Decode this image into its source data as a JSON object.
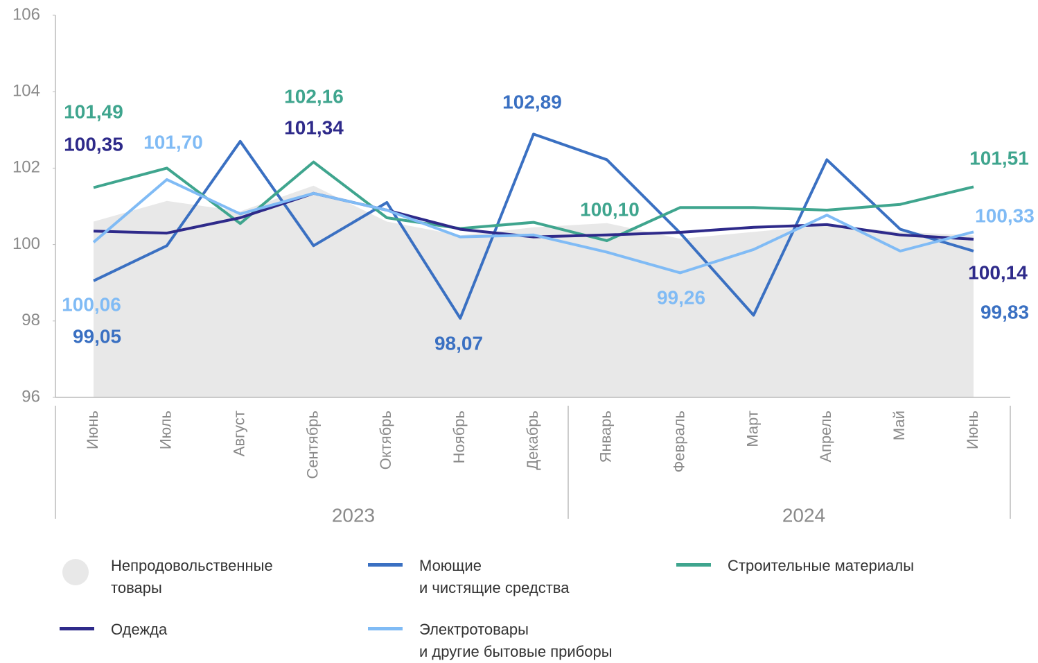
{
  "chart_data": {
    "type": "line",
    "categories": [
      "Июнь",
      "Июль",
      "Август",
      "Сентябрь",
      "Октябрь",
      "Ноябрь",
      "Декабрь",
      "Январь",
      "Февраль",
      "Март",
      "Апрель",
      "Май",
      "Июнь"
    ],
    "x_groups": [
      "2023",
      "2024"
    ],
    "ylim": [
      96,
      106
    ],
    "yticks": [
      96,
      98,
      100,
      102,
      104,
      106
    ],
    "series": [
      {
        "name": "Непродовольственные\nтовары",
        "type": "area",
        "color": "#e8e8e8",
        "values": [
          100.6,
          101.14,
          100.87,
          101.54,
          100.6,
          100.24,
          100.45,
          100.56,
          100.15,
          100.33,
          100.51,
          100.33,
          100.24
        ]
      },
      {
        "name": "Моющие\nи чистящие средства",
        "color": "#3a70c2",
        "values": [
          99.05,
          99.97,
          102.7,
          99.97,
          101.1,
          98.07,
          102.89,
          102.22,
          100.3,
          98.15,
          102.22,
          100.4,
          99.83
        ],
        "value_labels": [
          "99,05",
          null,
          null,
          null,
          null,
          "98,07",
          "102,89",
          null,
          null,
          null,
          null,
          null,
          "99,83"
        ]
      },
      {
        "name": "Строительные материалы",
        "color": "#3fa58e",
        "values": [
          101.49,
          102.0,
          100.55,
          102.16,
          100.7,
          100.42,
          100.58,
          100.1,
          100.97,
          100.97,
          100.9,
          101.05,
          101.51
        ],
        "value_labels": [
          "101,49",
          null,
          null,
          "102,16",
          null,
          null,
          null,
          "100,10",
          null,
          null,
          null,
          null,
          "101,51"
        ]
      },
      {
        "name": "Одежда",
        "color": "#2e2a8a",
        "values": [
          100.35,
          100.3,
          100.7,
          101.34,
          100.9,
          100.4,
          100.2,
          100.25,
          100.32,
          100.45,
          100.52,
          100.25,
          100.14
        ],
        "value_labels": [
          "100,35",
          null,
          null,
          "101,34",
          null,
          null,
          null,
          null,
          null,
          null,
          null,
          null,
          "100,14"
        ]
      },
      {
        "name": "Электротовары\nи другие бытовые приборы",
        "color": "#80bbf5",
        "values": [
          100.06,
          101.7,
          100.8,
          101.34,
          100.9,
          100.2,
          100.25,
          99.8,
          99.26,
          99.87,
          100.77,
          99.83,
          100.33
        ],
        "value_labels": [
          "100,06",
          "101,70",
          null,
          null,
          null,
          null,
          null,
          null,
          "99,26",
          null,
          null,
          null,
          "100,33"
        ]
      }
    ]
  }
}
